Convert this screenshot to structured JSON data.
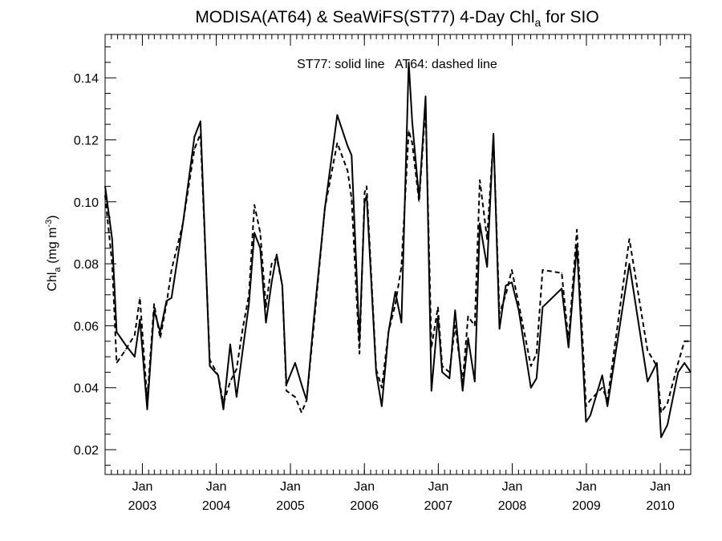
{
  "chart_data": {
    "type": "line",
    "title": {
      "main": "MODISA(AT64) & SeaWiFS(ST77) 4-Day Chl",
      "sub": "a",
      "suffix": " for SIO"
    },
    "annotation": "ST77: solid line   AT64: dashed line",
    "ylabel": {
      "main": "Chl",
      "sub": "a",
      "unit_pre": " (mg m",
      "unit_sup": "-3",
      "unit_post": ")"
    },
    "x_range": [
      "2002-07-01",
      "2010-05-31"
    ],
    "ylim": [
      0.012,
      0.154
    ],
    "y_ticks": [
      0.02,
      0.04,
      0.06,
      0.08,
      0.1,
      0.12,
      0.14
    ],
    "y_tick_labels": [
      "0.02",
      "0.04",
      "0.06",
      "0.08",
      "0.10",
      "0.12",
      "0.14"
    ],
    "x_ticks": [
      {
        "date": "2003-01-01",
        "label": "Jan",
        "year": "2003"
      },
      {
        "date": "2004-01-01",
        "label": "Jan",
        "year": "2004"
      },
      {
        "date": "2005-01-01",
        "label": "Jan",
        "year": "2005"
      },
      {
        "date": "2006-01-01",
        "label": "Jan",
        "year": "2006"
      },
      {
        "date": "2007-01-01",
        "label": "Jan",
        "year": "2007"
      },
      {
        "date": "2008-01-01",
        "label": "Jan",
        "year": "2008"
      },
      {
        "date": "2009-01-01",
        "label": "Jan",
        "year": "2009"
      },
      {
        "date": "2010-01-01",
        "label": "Jan",
        "year": "2010"
      }
    ],
    "grid": false,
    "series": [
      {
        "name": "ST77",
        "style": "solid",
        "color": "#000000",
        "points": [
          [
            "2002-07-01",
            0.105
          ],
          [
            "2002-08-05",
            0.088
          ],
          [
            "2002-08-27",
            0.058
          ],
          [
            "2002-10-08",
            0.054
          ],
          [
            "2002-11-24",
            0.05
          ],
          [
            "2002-12-20",
            0.062
          ],
          [
            "2003-01-25",
            0.033
          ],
          [
            "2003-02-28",
            0.065
          ],
          [
            "2003-03-30",
            0.058
          ],
          [
            "2003-04-30",
            0.068
          ],
          [
            "2003-05-25",
            0.069
          ],
          [
            "2003-07-20",
            0.093
          ],
          [
            "2003-09-15",
            0.121
          ],
          [
            "2003-10-15",
            0.126
          ],
          [
            "2003-11-30",
            0.047
          ],
          [
            "2004-01-10",
            0.044
          ],
          [
            "2004-02-05",
            0.033
          ],
          [
            "2004-03-10",
            0.054
          ],
          [
            "2004-04-10",
            0.037
          ],
          [
            "2004-05-10",
            0.052
          ],
          [
            "2004-06-10",
            0.067
          ],
          [
            "2004-07-07",
            0.09
          ],
          [
            "2004-08-05",
            0.085
          ],
          [
            "2004-09-02",
            0.061
          ],
          [
            "2004-09-30",
            0.074
          ],
          [
            "2004-10-25",
            0.083
          ],
          [
            "2004-11-22",
            0.073
          ],
          [
            "2004-12-12",
            0.041
          ],
          [
            "2005-01-24",
            0.048
          ],
          [
            "2005-02-25",
            0.041
          ],
          [
            "2005-03-22",
            0.036
          ],
          [
            "2005-04-25",
            0.061
          ],
          [
            "2005-06-20",
            0.098
          ],
          [
            "2005-08-20",
            0.128
          ],
          [
            "2005-10-10",
            0.118
          ],
          [
            "2005-10-30",
            0.115
          ],
          [
            "2005-12-08",
            0.055
          ],
          [
            "2006-01-02",
            0.1
          ],
          [
            "2006-01-12",
            0.102
          ],
          [
            "2006-02-28",
            0.045
          ],
          [
            "2006-03-28",
            0.034
          ],
          [
            "2006-04-30",
            0.058
          ],
          [
            "2006-06-03",
            0.071
          ],
          [
            "2006-07-03",
            0.061
          ],
          [
            "2006-08-08",
            0.145
          ],
          [
            "2006-08-25",
            0.126
          ],
          [
            "2006-09-28",
            0.101
          ],
          [
            "2006-10-30",
            0.134
          ],
          [
            "2006-11-28",
            0.039
          ],
          [
            "2006-12-30",
            0.063
          ],
          [
            "2007-01-20",
            0.045
          ],
          [
            "2007-02-25",
            0.043
          ],
          [
            "2007-03-25",
            0.065
          ],
          [
            "2007-05-01",
            0.039
          ],
          [
            "2007-05-28",
            0.056
          ],
          [
            "2007-06-30",
            0.042
          ],
          [
            "2007-07-25",
            0.093
          ],
          [
            "2007-08-30",
            0.079
          ],
          [
            "2007-09-30",
            0.122
          ],
          [
            "2007-10-30",
            0.059
          ],
          [
            "2007-11-30",
            0.073
          ],
          [
            "2007-12-30",
            0.074
          ],
          [
            "2008-02-02",
            0.065
          ],
          [
            "2008-04-02",
            0.04
          ],
          [
            "2008-04-30",
            0.043
          ],
          [
            "2008-05-30",
            0.066
          ],
          [
            "2008-09-01",
            0.072
          ],
          [
            "2008-10-05",
            0.053
          ],
          [
            "2008-11-15",
            0.086
          ],
          [
            "2008-12-30",
            0.029
          ],
          [
            "2009-01-20",
            0.031
          ],
          [
            "2009-03-20",
            0.044
          ],
          [
            "2009-04-15",
            0.034
          ],
          [
            "2009-08-01",
            0.08
          ],
          [
            "2009-10-30",
            0.042
          ],
          [
            "2009-12-15",
            0.048
          ],
          [
            "2010-01-05",
            0.024
          ],
          [
            "2010-02-05",
            0.028
          ],
          [
            "2010-03-30",
            0.045
          ],
          [
            "2010-04-30",
            0.048
          ],
          [
            "2010-05-31",
            0.045
          ]
        ]
      },
      {
        "name": "AT64",
        "style": "dashed",
        "color": "#000000",
        "points": [
          [
            "2002-07-01",
            0.102
          ],
          [
            "2002-08-05",
            0.08
          ],
          [
            "2002-08-27",
            0.048
          ],
          [
            "2002-10-08",
            0.052
          ],
          [
            "2002-11-24",
            0.057
          ],
          [
            "2002-12-20",
            0.069
          ],
          [
            "2003-01-25",
            0.036
          ],
          [
            "2003-02-28",
            0.067
          ],
          [
            "2003-03-30",
            0.056
          ],
          [
            "2003-04-30",
            0.067
          ],
          [
            "2003-05-25",
            0.078
          ],
          [
            "2003-07-20",
            0.093
          ],
          [
            "2003-09-15",
            0.117
          ],
          [
            "2003-10-15",
            0.122
          ],
          [
            "2003-11-30",
            0.049
          ],
          [
            "2004-01-10",
            0.044
          ],
          [
            "2004-02-05",
            0.035
          ],
          [
            "2004-03-10",
            0.042
          ],
          [
            "2004-04-10",
            0.046
          ],
          [
            "2004-05-10",
            0.059
          ],
          [
            "2004-06-10",
            0.07
          ],
          [
            "2004-07-07",
            0.099
          ],
          [
            "2004-08-05",
            0.09
          ],
          [
            "2004-09-02",
            0.066
          ],
          [
            "2004-09-30",
            0.08
          ],
          [
            "2004-10-25",
            0.082
          ],
          [
            "2004-11-22",
            0.073
          ],
          [
            "2004-12-12",
            0.039
          ],
          [
            "2005-01-24",
            0.037
          ],
          [
            "2005-02-25",
            0.032
          ],
          [
            "2005-03-22",
            0.036
          ],
          [
            "2005-04-25",
            0.059
          ],
          [
            "2005-06-20",
            0.098
          ],
          [
            "2005-08-20",
            0.119
          ],
          [
            "2005-10-10",
            0.11
          ],
          [
            "2005-10-30",
            0.101
          ],
          [
            "2005-12-08",
            0.051
          ],
          [
            "2006-01-02",
            0.103
          ],
          [
            "2006-01-12",
            0.105
          ],
          [
            "2006-02-28",
            0.046
          ],
          [
            "2006-03-28",
            0.04
          ],
          [
            "2006-04-30",
            0.058
          ],
          [
            "2006-06-03",
            0.067
          ],
          [
            "2006-07-03",
            0.079
          ],
          [
            "2006-08-08",
            0.123
          ],
          [
            "2006-08-25",
            0.119
          ],
          [
            "2006-09-28",
            0.1
          ],
          [
            "2006-10-30",
            0.131
          ],
          [
            "2006-11-28",
            0.053
          ],
          [
            "2006-12-30",
            0.066
          ],
          [
            "2007-01-20",
            0.047
          ],
          [
            "2007-02-25",
            0.045
          ],
          [
            "2007-03-25",
            0.06
          ],
          [
            "2007-05-01",
            0.042
          ],
          [
            "2007-05-28",
            0.063
          ],
          [
            "2007-06-30",
            0.06
          ],
          [
            "2007-07-25",
            0.107
          ],
          [
            "2007-08-30",
            0.088
          ],
          [
            "2007-09-30",
            0.121
          ],
          [
            "2007-10-30",
            0.064
          ],
          [
            "2007-11-30",
            0.07
          ],
          [
            "2007-12-30",
            0.078
          ],
          [
            "2008-02-02",
            0.067
          ],
          [
            "2008-04-02",
            0.047
          ],
          [
            "2008-04-30",
            0.051
          ],
          [
            "2008-05-30",
            0.078
          ],
          [
            "2008-09-01",
            0.077
          ],
          [
            "2008-10-05",
            0.055
          ],
          [
            "2008-11-15",
            0.091
          ],
          [
            "2008-12-30",
            0.034
          ],
          [
            "2009-01-20",
            0.036
          ],
          [
            "2009-03-20",
            0.04
          ],
          [
            "2009-04-15",
            0.036
          ],
          [
            "2009-08-01",
            0.088
          ],
          [
            "2009-10-30",
            0.052
          ],
          [
            "2009-12-15",
            0.047
          ],
          [
            "2010-01-05",
            0.032
          ],
          [
            "2010-02-05",
            0.035
          ],
          [
            "2010-03-30",
            0.048
          ],
          [
            "2010-04-30",
            0.055
          ],
          [
            "2010-05-31",
            0.055
          ]
        ]
      }
    ]
  }
}
